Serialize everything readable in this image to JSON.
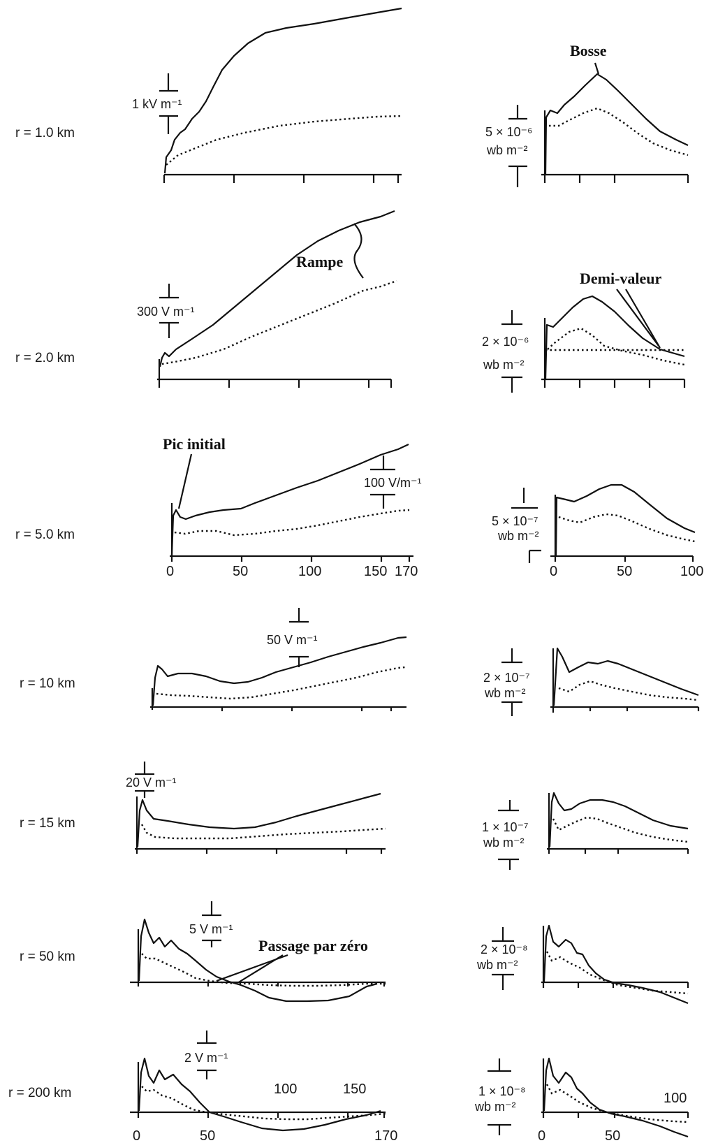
{
  "chart_data": {
    "type": "line",
    "rows": [
      {
        "label": "r = 1.0 km",
        "e_scale": "1 kV m⁻¹",
        "b_scale": [
          "5 × 10⁻⁶",
          "wb m⁻²"
        ]
      },
      {
        "label": "r = 2.0 km",
        "e_scale": "300 V m⁻¹",
        "b_scale": [
          "2 × 10⁻⁶",
          "wb m⁻²"
        ]
      },
      {
        "label": "r = 5.0 km",
        "e_scale": "100 V/m⁻¹",
        "b_scale": [
          "5 × 10⁻⁷",
          "wb m⁻²"
        ]
      },
      {
        "label": "r = 10 km",
        "e_scale": "50 V m⁻¹",
        "b_scale": [
          "2 × 10⁻⁷",
          "wb m⁻²"
        ]
      },
      {
        "label": "r = 15 km",
        "e_scale": "20 V m⁻¹",
        "b_scale": [
          "1 × 10⁻⁷",
          "wb m⁻²"
        ]
      },
      {
        "label": "r = 50 km",
        "e_scale": "5 V m⁻¹",
        "b_scale": [
          "2 × 10⁻⁸",
          "wb m⁻²"
        ]
      },
      {
        "label": "r = 200 km",
        "e_scale": "2 V m⁻¹",
        "b_scale": [
          "1 × 10⁻⁸",
          "wb m⁻²"
        ]
      }
    ],
    "e_ticks_row3": [
      "0",
      "50",
      "100",
      "150",
      "170"
    ],
    "e_ticks_row7": [
      "0",
      "50",
      "100",
      "150",
      "170"
    ],
    "b_ticks_row3": [
      "0",
      "50",
      "100"
    ],
    "b_ticks_row7": [
      "0",
      "50",
      "100"
    ],
    "annotations": {
      "bosse": "Bosse",
      "rampe": "Rampe",
      "demi_valeur": "Demi-valeur",
      "pic_initial": "Pic initial",
      "passage": "Passage par zéro"
    }
  }
}
